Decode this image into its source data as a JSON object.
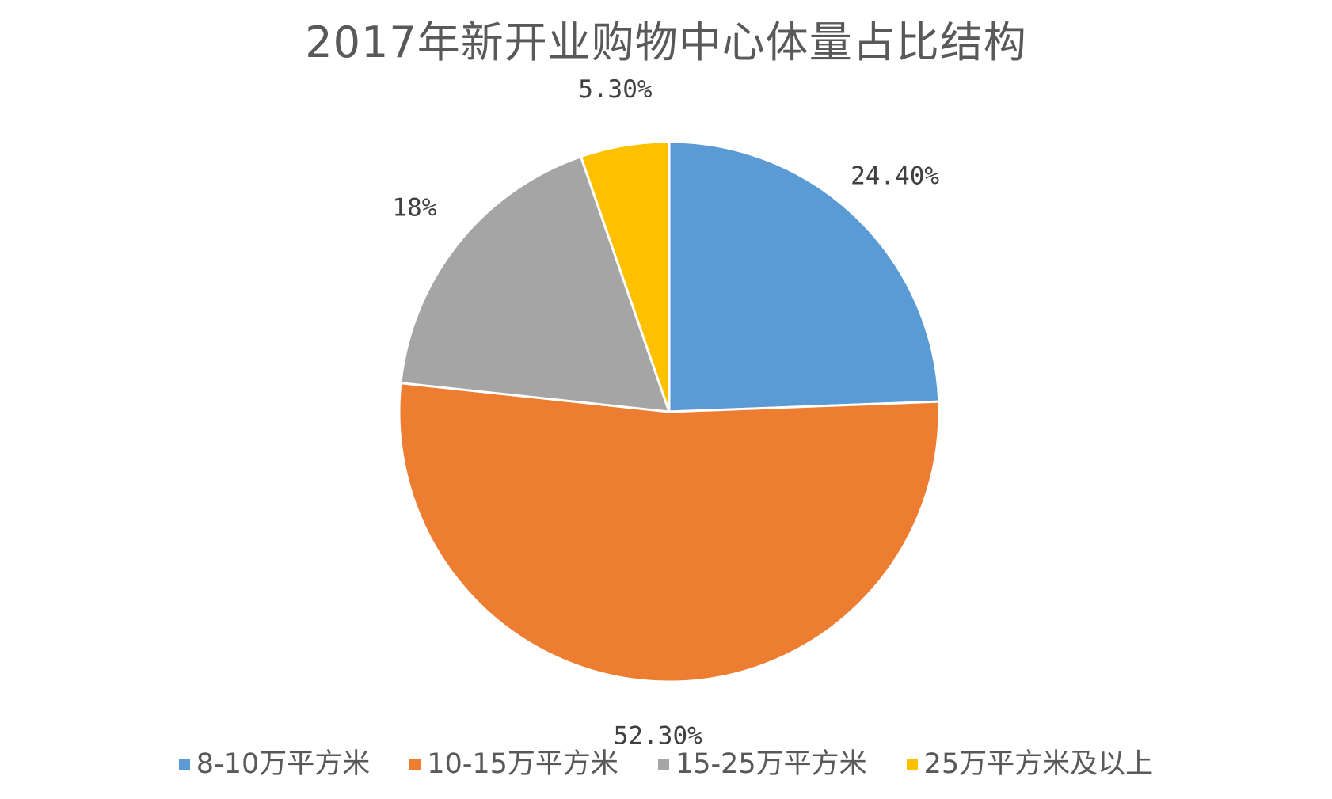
{
  "chart_data": {
    "type": "pie",
    "title": "2017年新开业购物中心体量占比结构",
    "start_angle_deg": 0,
    "direction": "clockwise",
    "legend_position": "bottom",
    "slices": [
      {
        "label": "8-10万平方米",
        "value": 24.4,
        "display": "24.40%",
        "color": "#5B9BD5"
      },
      {
        "label": "10-15万平方米",
        "value": 52.3,
        "display": "52.30%",
        "color": "#ED7D31"
      },
      {
        "label": "15-25万平方米",
        "value": 18,
        "display": "18%",
        "color": "#A5A5A5"
      },
      {
        "label": "25万平方米及以上",
        "value": 5.3,
        "display": "5.30%",
        "color": "#FFC000"
      }
    ]
  }
}
